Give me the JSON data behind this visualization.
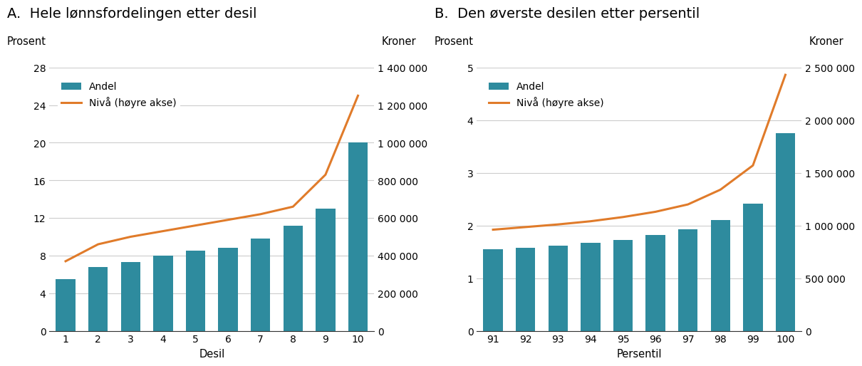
{
  "panel_A": {
    "title": "A.  Hele lønnsfordelingen etter desil",
    "xlabel": "Desil",
    "ylabel_left": "Prosent",
    "ylabel_right": "Kroner",
    "categories": [
      1,
      2,
      3,
      4,
      5,
      6,
      7,
      8,
      9,
      10
    ],
    "bar_values": [
      5.5,
      6.8,
      7.3,
      8.0,
      8.5,
      8.8,
      9.8,
      11.2,
      13.0,
      20.0
    ],
    "line_values": [
      370000,
      460000,
      500000,
      530000,
      560000,
      590000,
      620000,
      660000,
      830000,
      1250000
    ],
    "ylim_left": [
      0,
      28
    ],
    "ylim_right": [
      0,
      1400000
    ],
    "yticks_left": [
      0,
      4,
      8,
      12,
      16,
      20,
      24,
      28
    ],
    "yticks_right": [
      0,
      200000,
      400000,
      600000,
      800000,
      1000000,
      1200000,
      1400000
    ],
    "ytick_right_labels": [
      "0",
      "200 000",
      "400 000",
      "600 000",
      "800 000",
      "1 000 000",
      "1 200 000",
      "1 400 000"
    ]
  },
  "panel_B": {
    "title": "B.  Den øverste desilen etter persentil",
    "xlabel": "Persentil",
    "ylabel_left": "Prosent",
    "ylabel_right": "Kroner",
    "categories": [
      91,
      92,
      93,
      94,
      95,
      96,
      97,
      98,
      99,
      100
    ],
    "bar_values": [
      1.55,
      1.58,
      1.62,
      1.67,
      1.73,
      1.82,
      1.93,
      2.1,
      2.42,
      3.75
    ],
    "line_values": [
      960000,
      985000,
      1010000,
      1040000,
      1080000,
      1130000,
      1200000,
      1340000,
      1570000,
      2430000
    ],
    "ylim_left": [
      0,
      5
    ],
    "ylim_right": [
      0,
      2500000
    ],
    "yticks_left": [
      0,
      1,
      2,
      3,
      4,
      5
    ],
    "yticks_right": [
      0,
      500000,
      1000000,
      1500000,
      2000000,
      2500000
    ],
    "ytick_right_labels": [
      "0",
      "500 000",
      "1 000 000",
      "1 500 000",
      "2 000 000",
      "2 500 000"
    ]
  },
  "bar_color": "#2e8b9e",
  "line_color": "#e07b2a",
  "legend_label_bar": "Andel",
  "legend_label_line": "Nivå (høyre akse)",
  "line_width": 2.2,
  "bar_width": 0.6,
  "title_fontsize": 14,
  "label_fontsize": 10.5,
  "tick_fontsize": 10,
  "legend_fontsize": 10,
  "background_color": "#ffffff"
}
